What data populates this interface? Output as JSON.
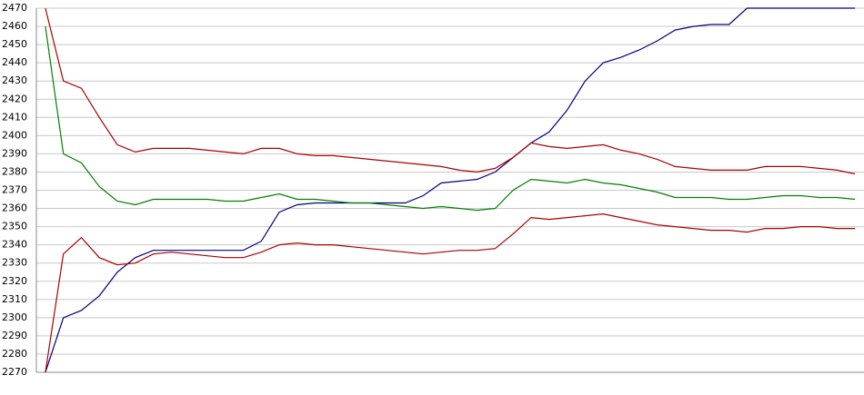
{
  "chart_data": {
    "type": "line",
    "categories": [
      null,
      null,
      null,
      null,
      null,
      null,
      null,
      null,
      null,
      null,
      null,
      null,
      null,
      null,
      null,
      null,
      null,
      null,
      null,
      null,
      null,
      null,
      null,
      null,
      null,
      null,
      null,
      null,
      null,
      null,
      null,
      null,
      null,
      null,
      null,
      null,
      null,
      null,
      null,
      null,
      null,
      null,
      null,
      null,
      null,
      null
    ],
    "series": [
      {
        "color": "#000080",
        "values": [
          2270,
          2300,
          2304,
          2312,
          2325,
          2333,
          2337,
          2337,
          2337,
          2337,
          2337,
          2337,
          2342,
          2358,
          2362,
          2363,
          2363,
          2363,
          2363,
          2363,
          2363,
          2367,
          2374,
          2375,
          2376,
          2380,
          2388,
          2396,
          2402,
          2414,
          2430,
          2440,
          2443,
          2447,
          2452,
          2458,
          2460,
          2461,
          2461,
          2470,
          2470,
          2470,
          2470,
          2470,
          2470,
          2470
        ]
      },
      {
        "color": "#008000",
        "values": [
          2460,
          2390,
          2385,
          2372,
          2364,
          2362,
          2365,
          2365,
          2365,
          2365,
          2364,
          2364,
          2366,
          2368,
          2365,
          2365,
          2364,
          2363,
          2363,
          2362,
          2361,
          2360,
          2361,
          2360,
          2359,
          2360,
          2370,
          2376,
          2375,
          2374,
          2376,
          2374,
          2373,
          2371,
          2369,
          2366,
          2366,
          2366,
          2365,
          2365,
          2366,
          2367,
          2367,
          2366,
          2366,
          2365
        ]
      },
      {
        "color": "#aa0000",
        "values": [
          2470,
          2430,
          2426,
          2410,
          2395,
          2391,
          2393,
          2393,
          2393,
          2392,
          2391,
          2390,
          2393,
          2393,
          2390,
          2389,
          2389,
          2388,
          2387,
          2386,
          2385,
          2384,
          2383,
          2381,
          2380,
          2382,
          2388,
          2396,
          2394,
          2393,
          2394,
          2395,
          2392,
          2390,
          2387,
          2383,
          2382,
          2381,
          2381,
          2381,
          2383,
          2383,
          2383,
          2382,
          2381,
          2379
        ]
      },
      {
        "color": "#aa0000",
        "values": [
          2270,
          2335,
          2344,
          2333,
          2329,
          2330,
          2335,
          2336,
          2335,
          2334,
          2333,
          2333,
          2336,
          2340,
          2341,
          2340,
          2340,
          2339,
          2338,
          2337,
          2336,
          2335,
          2336,
          2337,
          2337,
          2338,
          2346,
          2355,
          2354,
          2355,
          2356,
          2357,
          2355,
          2353,
          2351,
          2350,
          2349,
          2348,
          2348,
          2347,
          2349,
          2349,
          2350,
          2350,
          2349,
          2349
        ]
      }
    ],
    "ylim": [
      2270,
      2470
    ],
    "yticks": [
      2270,
      2280,
      2290,
      2300,
      2310,
      2320,
      2330,
      2340,
      2350,
      2360,
      2370,
      2380,
      2390,
      2400,
      2410,
      2420,
      2430,
      2440,
      2450,
      2460,
      2470
    ],
    "grid": true
  }
}
